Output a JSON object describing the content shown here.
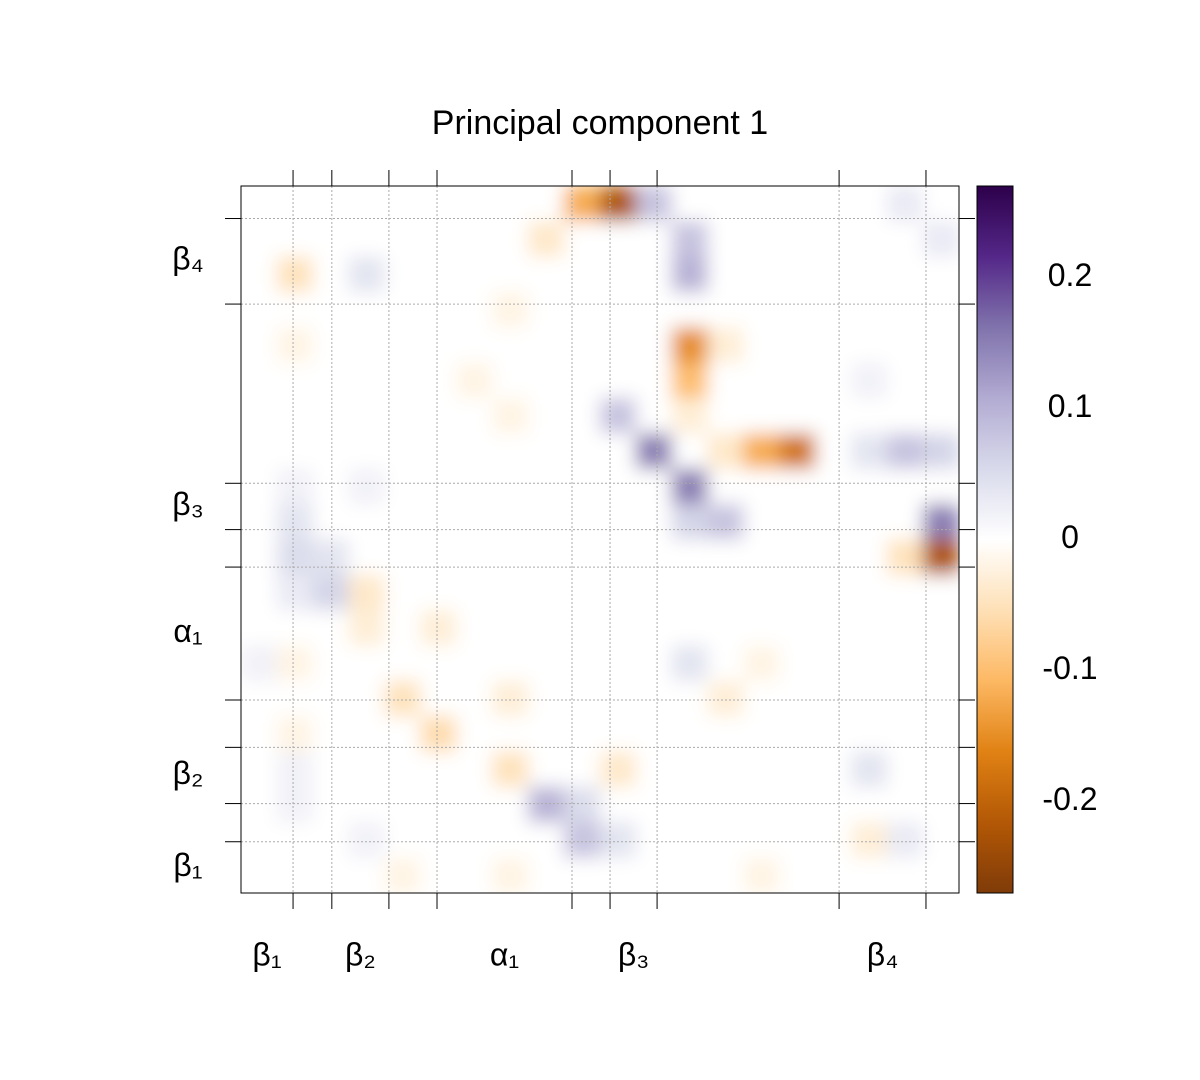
{
  "chart_data": {
    "type": "heatmap",
    "title": "Principal component 1",
    "xlim": [
      0,
      20
    ],
    "ylim": [
      0,
      20
    ],
    "ticks": [
      1.45,
      2.53,
      4.12,
      5.46,
      9.22,
      10.28,
      11.59,
      16.66,
      19.08
    ],
    "segments": [
      {
        "label": "β₁",
        "start": 0,
        "end": 1.45
      },
      {
        "label": "β₂",
        "start": 2.53,
        "end": 4.12
      },
      {
        "label": "α₁",
        "start": 5.46,
        "end": 9.22
      },
      {
        "label": "β₃",
        "start": 10.28,
        "end": 11.59
      },
      {
        "label": "β₄",
        "start": 16.66,
        "end": 19.08
      }
    ],
    "grid": true,
    "z": [
      [
        0,
        0,
        0,
        0,
        0,
        0,
        0,
        0,
        0,
        -0.12,
        -0.22,
        0.08,
        0,
        0,
        0,
        0,
        0,
        0,
        0.03,
        0
      ],
      [
        0,
        0,
        0,
        0,
        0,
        0,
        0,
        0,
        -0.04,
        0,
        0,
        0,
        0.08,
        0,
        0,
        0,
        0,
        0,
        0,
        0.03
      ],
      [
        0,
        -0.05,
        0,
        0.04,
        0,
        0,
        0,
        0,
        0,
        0,
        0,
        0,
        0.1,
        0,
        0,
        0,
        0,
        0,
        0,
        0
      ],
      [
        0,
        0,
        0,
        0,
        0,
        0,
        0,
        -0.02,
        0,
        0,
        0,
        0,
        0,
        0,
        0,
        0,
        0,
        0,
        0,
        0
      ],
      [
        0,
        -0.02,
        0,
        0,
        0,
        0,
        0,
        0,
        0,
        0,
        0,
        0,
        -0.15,
        -0.03,
        0,
        0,
        0,
        0,
        0,
        0
      ],
      [
        0,
        0,
        0,
        0,
        0,
        0,
        -0.02,
        0,
        0,
        0,
        0,
        0,
        -0.1,
        0,
        0,
        0,
        0,
        0.02,
        0,
        0
      ],
      [
        0,
        0,
        0,
        0,
        0,
        0,
        0,
        -0.02,
        0,
        0,
        0.08,
        0,
        -0.03,
        0,
        0,
        0,
        0,
        0,
        0,
        0
      ],
      [
        0,
        0,
        0,
        0,
        0,
        0,
        0,
        0,
        0,
        0,
        0,
        0.15,
        0,
        -0.04,
        -0.12,
        -0.18,
        0,
        0.04,
        0.08,
        0.06
      ],
      [
        0,
        0.02,
        0,
        0.02,
        0,
        0,
        0,
        0,
        0,
        0,
        0,
        0,
        0.15,
        0,
        0,
        0,
        0,
        0,
        0,
        0
      ],
      [
        0,
        0.04,
        0,
        0,
        0,
        0,
        0,
        0,
        0,
        0,
        0,
        0,
        0.06,
        0.08,
        0,
        0,
        0,
        0,
        0,
        0.15
      ],
      [
        0,
        0.05,
        0.04,
        0,
        0,
        0,
        0,
        0,
        0,
        0,
        0,
        0,
        0,
        0,
        0,
        0,
        0,
        0,
        -0.05,
        -0.22
      ],
      [
        0,
        0.03,
        0.06,
        -0.04,
        0,
        0,
        0,
        0,
        0,
        0,
        0,
        0,
        0,
        0,
        0,
        0,
        0,
        0,
        0,
        0
      ],
      [
        0,
        0,
        0,
        -0.03,
        0,
        -0.03,
        0,
        0,
        0,
        0,
        0,
        0,
        0,
        0,
        0,
        0,
        0,
        0,
        0,
        0
      ],
      [
        0.02,
        -0.02,
        0,
        0,
        0,
        0,
        0,
        0,
        0,
        0,
        0,
        0,
        0.04,
        0,
        -0.02,
        0,
        0,
        0,
        0,
        0
      ],
      [
        0,
        0,
        0,
        0,
        -0.05,
        0,
        0,
        -0.03,
        0,
        0,
        0,
        0,
        0,
        -0.03,
        0,
        0,
        0,
        0,
        0,
        0
      ],
      [
        0,
        -0.02,
        0,
        0,
        0,
        -0.06,
        0,
        0,
        0,
        0,
        0,
        0,
        0,
        0,
        0,
        0,
        0,
        0,
        0,
        0
      ],
      [
        0,
        0.02,
        0,
        0,
        0,
        0,
        0,
        -0.05,
        0,
        0,
        -0.04,
        0,
        0,
        0,
        0,
        0,
        0,
        0.04,
        0,
        0
      ],
      [
        0,
        0.02,
        0,
        0,
        0,
        0,
        0,
        0,
        0.1,
        0.05,
        0,
        0,
        0,
        0,
        0,
        0,
        0,
        0,
        0,
        0
      ],
      [
        0,
        0,
        0,
        0.02,
        0,
        0,
        0,
        0,
        0,
        0.08,
        0.04,
        0,
        0,
        0,
        0,
        0,
        0,
        -0.03,
        0.03,
        0
      ],
      [
        0,
        0,
        0,
        0,
        -0.02,
        0,
        0,
        -0.02,
        0,
        0,
        0,
        0,
        0,
        0,
        -0.02,
        0,
        0,
        0,
        0,
        0
      ]
    ],
    "zlim": [
      -0.27,
      0.27
    ],
    "zticks": [
      -0.2,
      -0.1,
      0,
      0.1,
      0.2
    ],
    "colors": [
      "#7f3b08",
      "#b35806",
      "#e08214",
      "#fdb863",
      "#fee0b6",
      "#ffffff",
      "#d8daeb",
      "#b2abd2",
      "#8073ac",
      "#542788",
      "#2d004b"
    ]
  }
}
